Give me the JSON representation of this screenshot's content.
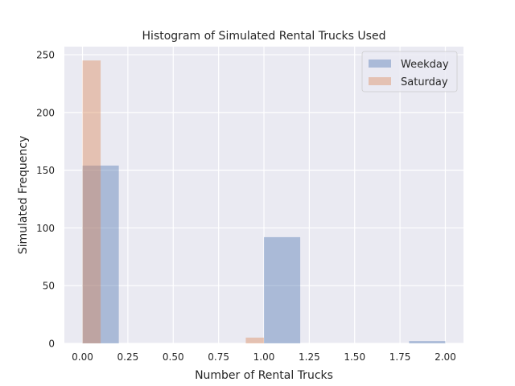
{
  "chart_data": {
    "type": "bar",
    "title": "Histogram of Simulated Rental Trucks Used",
    "xlabel": "Number of Rental Trucks",
    "ylabel": "Simulated Frequency",
    "xlim": [
      -0.1,
      2.1
    ],
    "ylim": [
      0,
      257
    ],
    "xticks": [
      "0.00",
      "0.25",
      "0.50",
      "0.75",
      "1.00",
      "1.25",
      "1.50",
      "1.75",
      "2.00"
    ],
    "yticks": [
      "0",
      "50",
      "100",
      "150",
      "200",
      "250"
    ],
    "grid": true,
    "legend_position": "top-right",
    "series": [
      {
        "name": "Weekday",
        "color": "#4c72b0",
        "bins": [
          {
            "x0": 0.0,
            "x1": 0.2,
            "value": 154
          },
          {
            "x0": 1.0,
            "x1": 1.2,
            "value": 92
          },
          {
            "x0": 1.8,
            "x1": 2.0,
            "value": 2
          }
        ]
      },
      {
        "name": "Saturday",
        "color": "#dd8452",
        "bins": [
          {
            "x0": 0.0,
            "x1": 0.1,
            "value": 245
          },
          {
            "x0": 0.9,
            "x1": 1.0,
            "value": 5
          }
        ]
      }
    ]
  }
}
